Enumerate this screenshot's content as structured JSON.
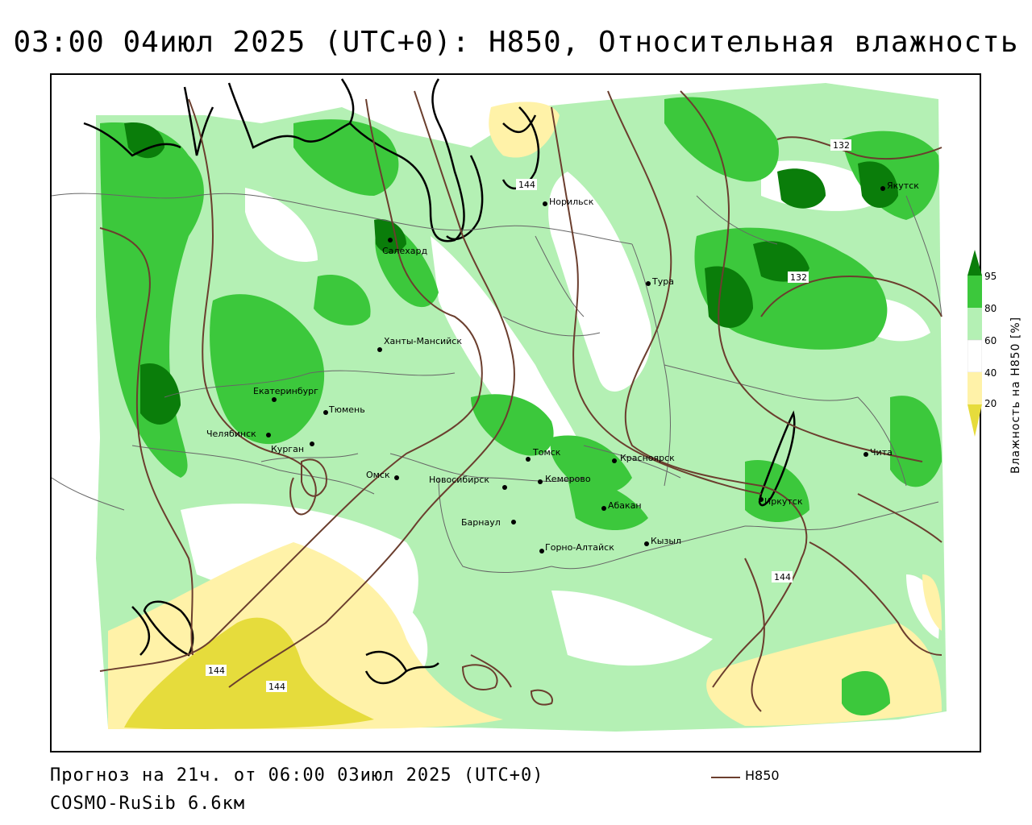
{
  "title": "03:00 04июл 2025 (UTC+0): H850, Относительная влажность",
  "footer": {
    "forecast": "Прогноз на 21ч. от 06:00 03июл 2025 (UTC+0)",
    "model": "COSMO-RuSib 6.6км",
    "legend_label": "H850"
  },
  "colorbar": {
    "title": "Влажность на H850 [%]",
    "ticks": [
      "95",
      "80",
      "60",
      "40",
      "20"
    ],
    "colors": {
      "95_plus": "#0a7d0a",
      "80_95": "#3cc83c",
      "60_80": "#b4f0b4",
      "40_60": "#ffffff",
      "20_40": "#fff2a8",
      "below_20": "#e6dc3c"
    }
  },
  "cities": [
    {
      "name": "Салехард"
    },
    {
      "name": "Норильск"
    },
    {
      "name": "Якутск"
    },
    {
      "name": "Тура"
    },
    {
      "name": "Ханты-Мансийск"
    },
    {
      "name": "Екатеринбург"
    },
    {
      "name": "Тюмень"
    },
    {
      "name": "Челябинск"
    },
    {
      "name": "Курган"
    },
    {
      "name": "Омск"
    },
    {
      "name": "Новосибирск"
    },
    {
      "name": "Томск"
    },
    {
      "name": "Кемерово"
    },
    {
      "name": "Красноярск"
    },
    {
      "name": "Абакан"
    },
    {
      "name": "Барнаул"
    },
    {
      "name": "Горно-Алтайск"
    },
    {
      "name": "Кызыл"
    },
    {
      "name": "Иркутск"
    },
    {
      "name": "Чита"
    }
  ],
  "isolines": {
    "label_144": "144",
    "label_132": "132",
    "color": "#6b3e2e"
  }
}
